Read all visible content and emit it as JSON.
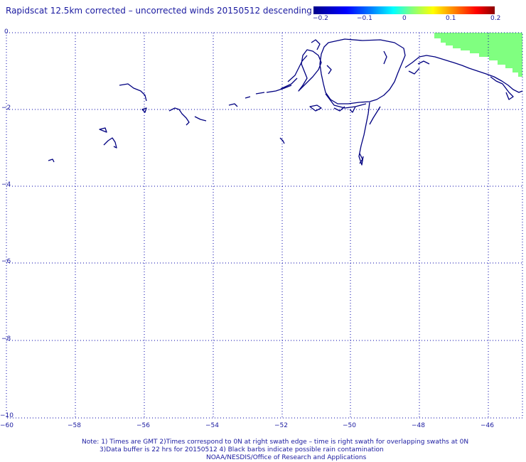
{
  "title": "Rapidscat 12.5km corrected – uncorrected winds 20150512 descending",
  "colorbar": {
    "labels": [
      "−0.2",
      "−0.1",
      "0",
      "0.1",
      "0.2"
    ],
    "colors": [
      "#00008b",
      "#0000ff",
      "#00ffff",
      "#ffff00",
      "#ff0000",
      "#8b0000"
    ]
  },
  "axes": {
    "y_labels": [
      "0",
      "−2",
      "−4",
      "−6",
      "−8",
      "−10"
    ],
    "x_labels": [
      "−60",
      "−58",
      "−56",
      "−54",
      "−52",
      "−50",
      "−48",
      "−46"
    ],
    "grid_color": "#0000aa",
    "grid_style": "dotted"
  },
  "map": {
    "coastline_color": "#000080",
    "swath_fill_color": "#80ff80"
  },
  "notes": {
    "line1": "Note: 1) Times are GMT 2)Times correspond to 0N at right swath edge – time is right swath for overlapping swaths at 0N",
    "line2": "3)Data buffer is 22 hrs for 20150512 4) Black barbs indicate possible rain contamination",
    "line3": "NOAA/NESDIS/Office of Research and Applications"
  }
}
